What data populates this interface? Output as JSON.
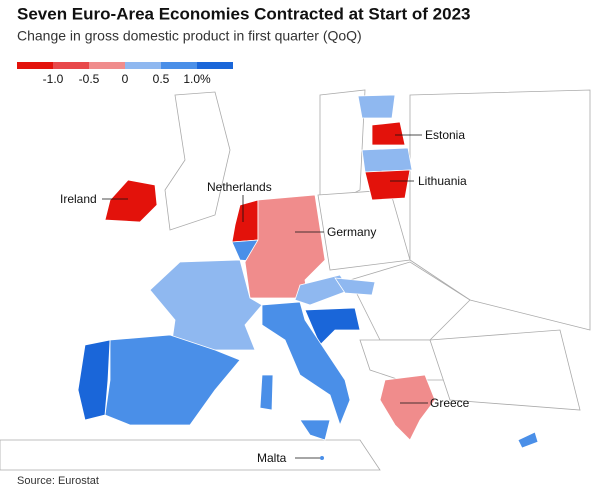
{
  "header": {
    "title": "Seven Euro-Area Economies Contracted at Start of 2023",
    "subtitle": "Change in gross domestic product in first quarter (QoQ)"
  },
  "legend": {
    "colors": [
      "#e3120b",
      "#e8484a",
      "#f08c8c",
      "#8fb8f0",
      "#4a8fe8",
      "#1a66d9"
    ],
    "labels": [
      "-1.0",
      "-0.5",
      "0",
      "0.5",
      "1.0%"
    ]
  },
  "labels": {
    "estonia": "Estonia",
    "lithuania": "Lithuania",
    "ireland": "Ireland",
    "netherlands": "Netherlands",
    "germany": "Germany",
    "greece": "Greece",
    "malta": "Malta"
  },
  "footer": {
    "source": "Source: Eurostat"
  }
}
